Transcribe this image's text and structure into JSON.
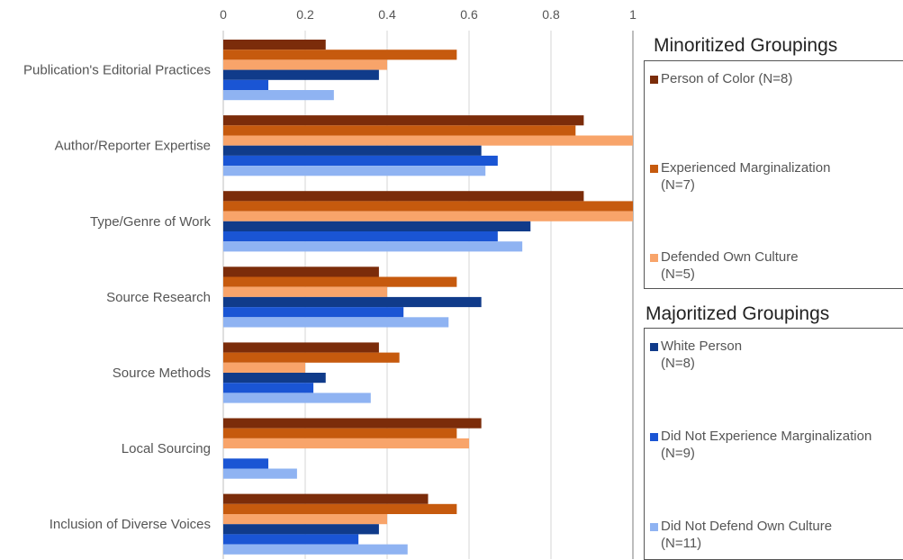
{
  "chart_data": {
    "type": "bar",
    "orientation": "horizontal",
    "categories": [
      "Publication's Editorial Practices",
      "Author/Reporter Expertise",
      "Type/Genre of Work",
      "Source Research",
      "Source Methods",
      "Local Sourcing",
      "Inclusion of Diverse Voices"
    ],
    "xlim": [
      0,
      1
    ],
    "xticks": [
      "0",
      "0.2",
      "0.4",
      "0.6",
      "0.8",
      "1"
    ],
    "tick_values": [
      0,
      0.2,
      0.4,
      0.6,
      0.8,
      1
    ],
    "axis_position": "top",
    "grid": true,
    "series": [
      {
        "name": "Person of Color (N=8)",
        "color": "#7b2c0a",
        "values": [
          0.25,
          0.88,
          0.88,
          0.38,
          0.38,
          0.63,
          0.5
        ]
      },
      {
        "name": "Experienced Marginalization (N=7)",
        "color": "#c65a0e",
        "values": [
          0.57,
          0.86,
          1.0,
          0.57,
          0.43,
          0.57,
          0.57
        ]
      },
      {
        "name": "Defended Own Culture (N=5)",
        "color": "#f8a46a",
        "values": [
          0.4,
          1.0,
          1.0,
          0.4,
          0.2,
          0.6,
          0.4
        ]
      },
      {
        "name": "White Person (N=8)",
        "color": "#103b8a",
        "values": [
          0.38,
          0.63,
          0.75,
          0.63,
          0.25,
          0.0,
          0.38
        ]
      },
      {
        "name": "Did Not Experience Marginalization (N=9)",
        "color": "#1a55d4",
        "values": [
          0.11,
          0.67,
          0.67,
          0.44,
          0.22,
          0.11,
          0.33
        ]
      },
      {
        "name": "Did Not Defend Own Culture (N=11)",
        "color": "#8fb3f2",
        "values": [
          0.27,
          0.64,
          0.73,
          0.55,
          0.36,
          0.18,
          0.45
        ]
      }
    ],
    "legend": [
      {
        "title": "Minoritized Groupings",
        "items": [
          {
            "line1": "Person of Color (N=8)",
            "line2": "",
            "color": "#7b2c0a"
          },
          {
            "line1": "Experienced Marginalization",
            "line2": "(N=7)",
            "color": "#c65a0e"
          },
          {
            "line1": "Defended Own Culture",
            "line2": "(N=5)",
            "color": "#f8a46a"
          }
        ]
      },
      {
        "title": "Majoritized Groupings",
        "items": [
          {
            "line1": "White Person",
            "line2": "(N=8)",
            "color": "#103b8a"
          },
          {
            "line1": "Did Not Experience Marginalization",
            "line2": "(N=9)",
            "color": "#1a55d4"
          },
          {
            "line1": "Did Not Defend Own Culture",
            "line2": "(N=11)",
            "color": "#8fb3f2"
          }
        ]
      }
    ],
    "legend_placement": "right"
  }
}
